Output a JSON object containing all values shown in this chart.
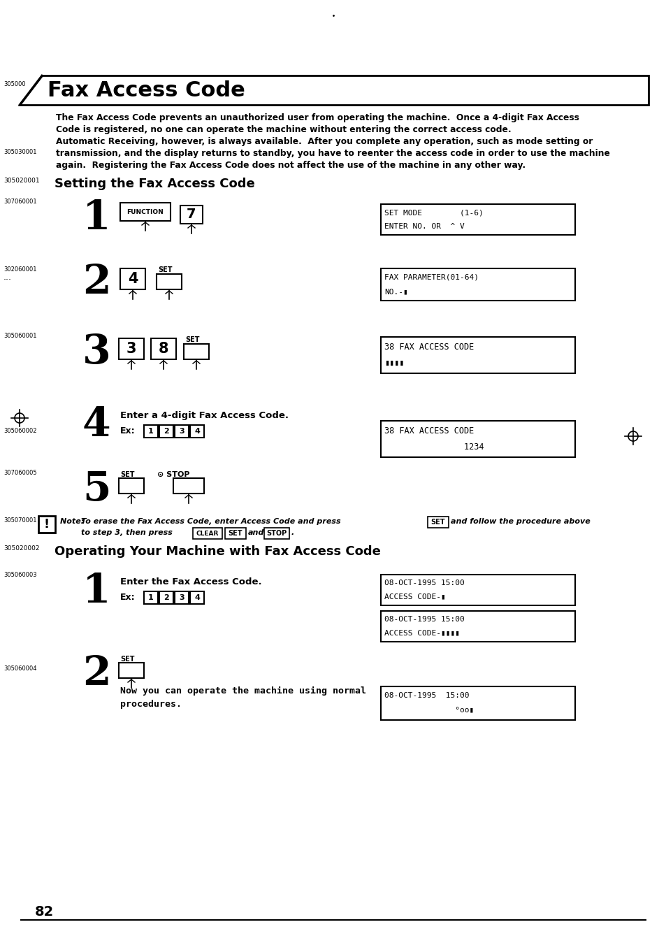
{
  "bg_color": "#ffffff",
  "page_number": "82",
  "title": "Fax Access Code",
  "title_code": "305000",
  "intro_line1": "The Fax Access Code prevents an unauthorized user from operating the machine.  Once a 4-digit Fax Access",
  "intro_line2": "Code is registered, no one can operate the machine without entering the correct access code.",
  "intro_line3": "Automatic Receiving, however, is always available.  After you complete any operation, such as mode setting or",
  "intro_line4": "transmission, and the display returns to standby, you have to reenter the access code in order to use the machine",
  "intro_line5": "again.  Registering the Fax Access Code does not affect the use of the machine in any other way.",
  "intro_code": "305030001",
  "section1_code": "305020001",
  "section1_title": "Setting the Fax Access Code",
  "step1_code": "307060001",
  "step2_code": "302060001",
  "step3_code": "305060001",
  "step4_code": "305060002",
  "step5_code": "307060005",
  "note_code": "305070001",
  "section2_code": "305020002",
  "section2_title": "Operating Your Machine with Fax Access Code",
  "s2_step1_code": "305060003",
  "s2_step2_code": "305060004",
  "display1_line1": "SET MODE        (1-6)",
  "display1_line2": "ENTER NO. OR  ^ V",
  "display2_line1": "FAX PARAMETER(01-64)",
  "display2_line2": "NO.-▮",
  "display3_line1": "38 FAX ACCESS CODE",
  "display3_line2": "▮▮▮▮",
  "display4_line1": "38 FAX ACCESS CODE",
  "display4_line2": "                1234",
  "display5_line1": "08-OCT-1995 15:00",
  "display5_line2": "ACCESS CODE-▮",
  "display6_line1": "08-OCT-1995 15:00",
  "display6_line2": "ACCESS CODE-▮▮▮▮",
  "display7_line1": "08-OCT-1995  15:00",
  "display7_line2": "               °oo▮"
}
